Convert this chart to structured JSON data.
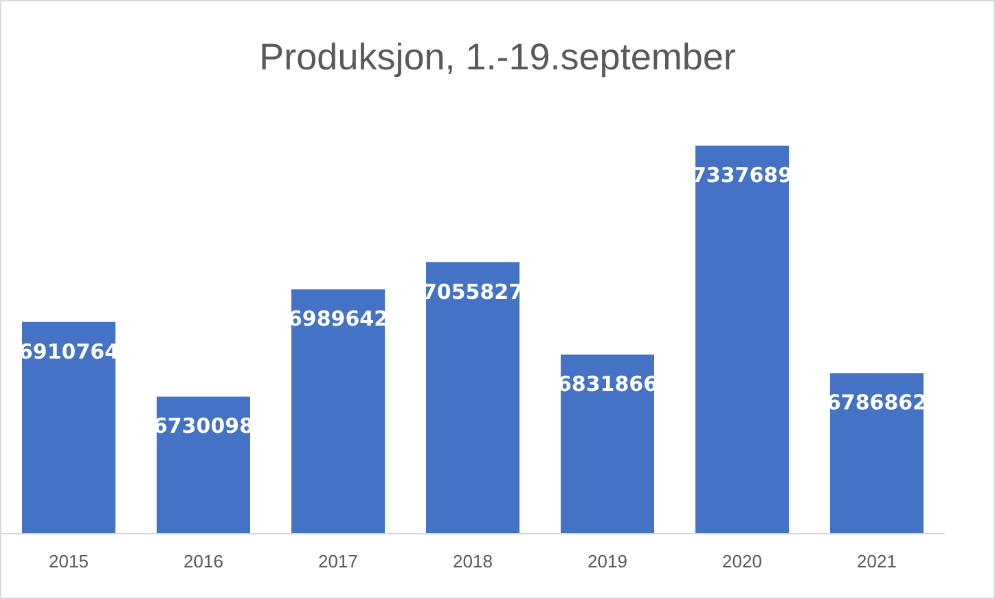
{
  "chart_data": {
    "type": "bar",
    "title": "Produksjon, 1.-19.september",
    "categories": [
      "2015",
      "2016",
      "2017",
      "2018",
      "2019",
      "2020",
      "2021"
    ],
    "values": [
      6910764,
      6730098,
      6989642,
      7055827,
      6831866,
      7337689,
      6786862
    ],
    "color": "#4472c4",
    "ylim": [
      6400000,
      7337689
    ],
    "data_labels": true,
    "tick_labels": "x"
  }
}
